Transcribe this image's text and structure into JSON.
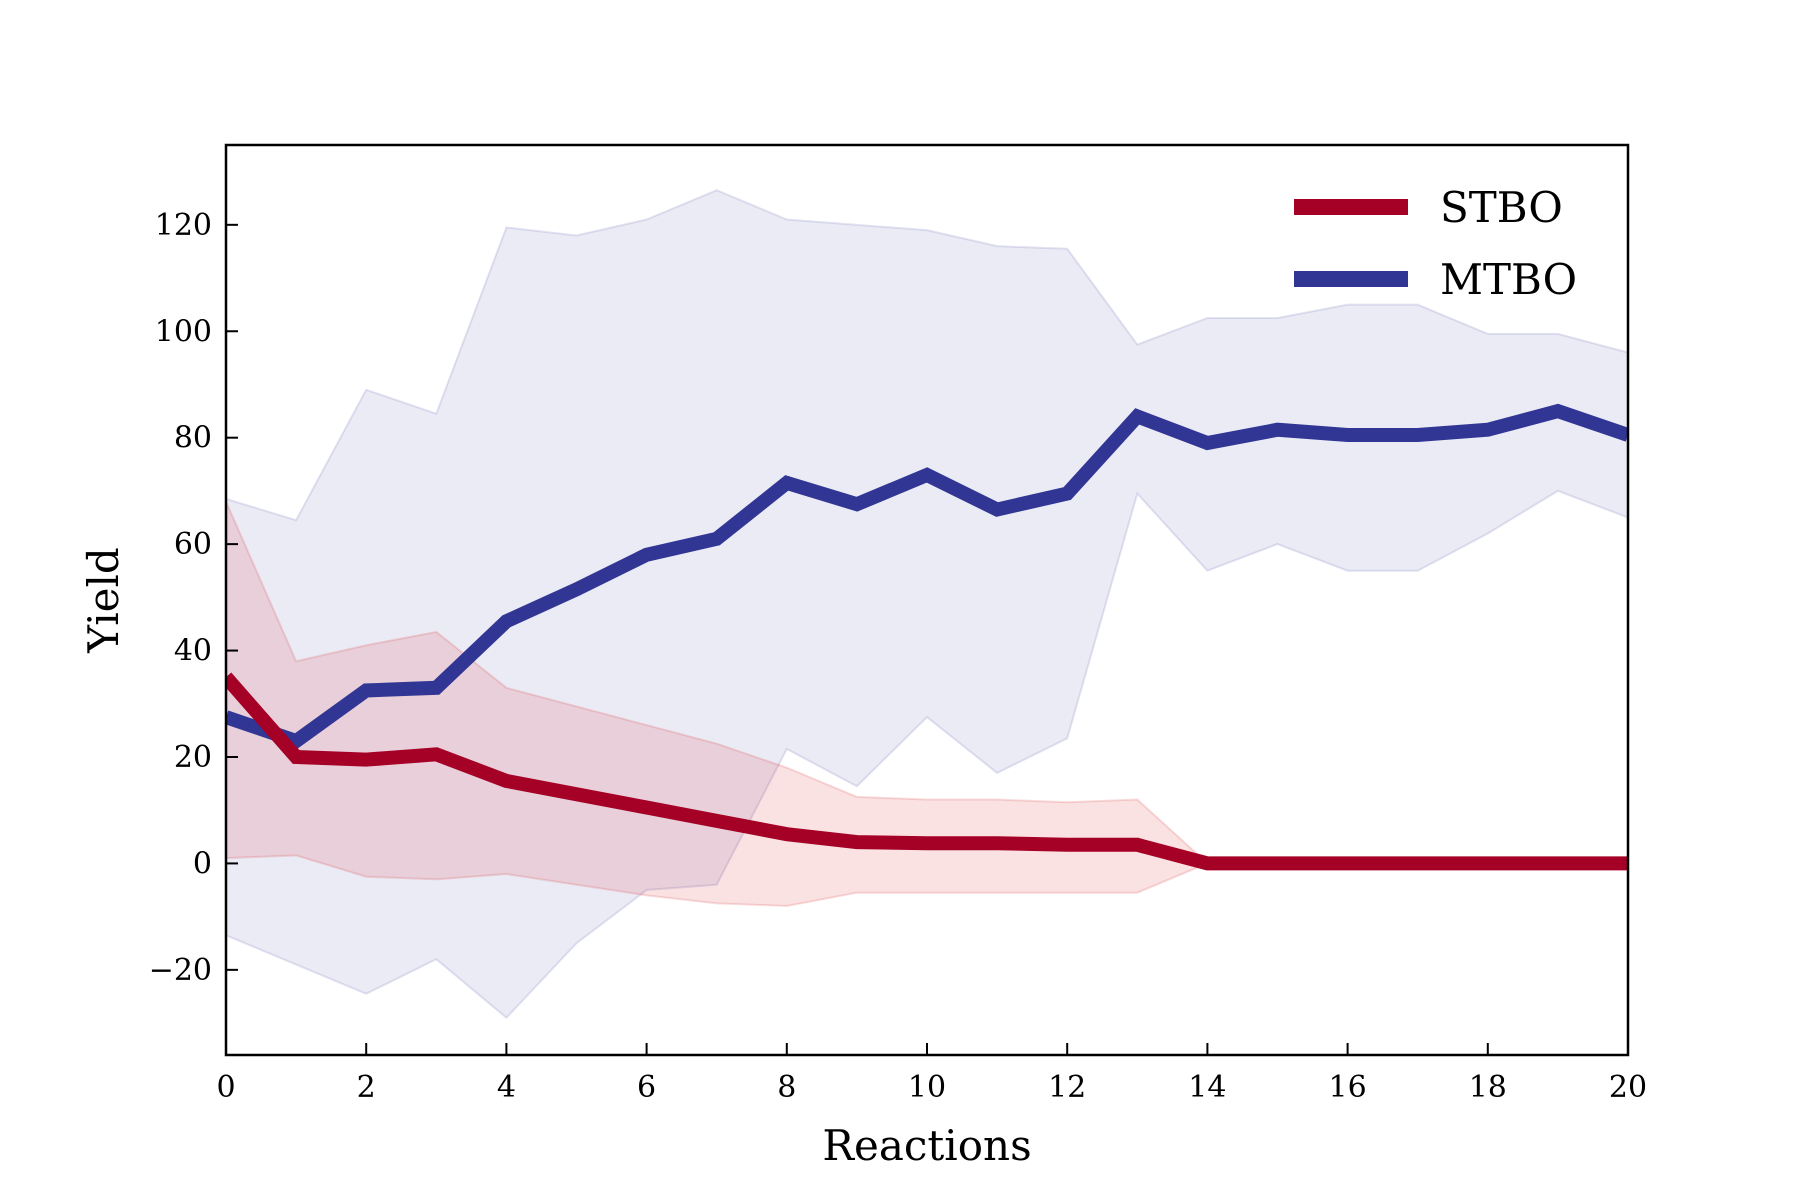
{
  "chart_data": {
    "type": "line",
    "title": "",
    "xlabel": "Reactions",
    "ylabel": "Yield",
    "xlim": [
      0,
      20
    ],
    "ylim": [
      -36,
      135
    ],
    "xticks": [
      0,
      2,
      4,
      6,
      8,
      10,
      12,
      14,
      16,
      18,
      20
    ],
    "yticks": [
      -20,
      0,
      20,
      40,
      60,
      80,
      100,
      120
    ],
    "ytick_labels": [
      "−20",
      "0",
      "20",
      "40",
      "60",
      "80",
      "100",
      "120"
    ],
    "grid": false,
    "legend_position": "top-right",
    "x": [
      0,
      1,
      2,
      3,
      4,
      5,
      6,
      7,
      8,
      9,
      10,
      11,
      12,
      13,
      14,
      15,
      16,
      17,
      18,
      19,
      20
    ],
    "series": [
      {
        "name": "STBO",
        "color": "#a50026",
        "fill_color": "#d7191c",
        "values": [
          35,
          20,
          19.5,
          20.5,
          15.5,
          13,
          10.5,
          8,
          5.5,
          4,
          3.8,
          3.8,
          3.5,
          3.5,
          0,
          0,
          0,
          0,
          0,
          0,
          0
        ],
        "upper": [
          68,
          38,
          41,
          43.5,
          33,
          29.5,
          26,
          22.5,
          18,
          12.5,
          12,
          12,
          11.5,
          12,
          0,
          0,
          0,
          0,
          0,
          0,
          0
        ],
        "lower": [
          1,
          1.5,
          -2.5,
          -3,
          -2,
          -4,
          -6,
          -7.5,
          -8,
          -5.5,
          -5.5,
          -5.5,
          -5.5,
          -5.5,
          0,
          0,
          0,
          0,
          0,
          0,
          0
        ]
      },
      {
        "name": "MTBO",
        "color": "#313695",
        "fill_color": "#4a4aa8",
        "values": [
          27.5,
          23,
          32.5,
          33,
          45.5,
          51.5,
          58,
          61,
          71.5,
          67.5,
          73,
          66.5,
          69.5,
          84,
          79,
          81.5,
          80.5,
          80.5,
          81.5,
          85,
          80.5
        ],
        "upper": [
          68.5,
          64.5,
          89,
          84.5,
          119.5,
          118,
          121,
          126.5,
          121,
          120,
          119,
          116,
          115.5,
          97.5,
          102.5,
          102.5,
          105,
          105,
          99.5,
          99.5,
          96
        ],
        "lower": [
          -13.5,
          -19,
          -24.5,
          -18,
          -29,
          -15,
          -5,
          -4,
          21.5,
          14.5,
          27.5,
          17,
          23.5,
          69.5,
          55,
          60,
          55,
          55,
          62,
          70,
          65
        ]
      }
    ]
  }
}
